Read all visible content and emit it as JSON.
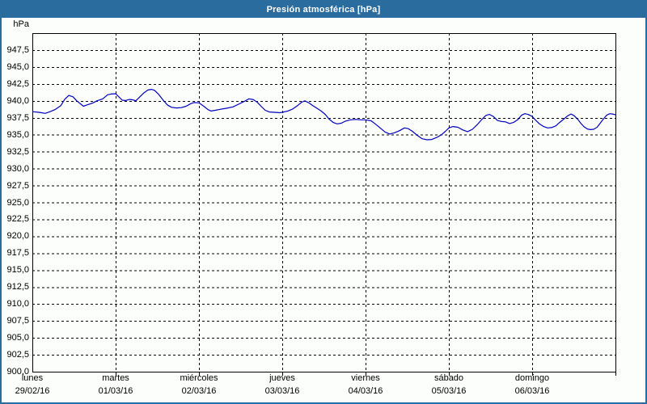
{
  "window": {
    "title": "Presión atmosférica [hPa]"
  },
  "colors": {
    "frame": "#2B6C9F",
    "title_text": "#FFFFFF",
    "background": "#FBFEFA",
    "plot_border": "#000000",
    "gridline": "#000000",
    "series_line": "#0000BE",
    "label_text": "#000000"
  },
  "chart_data": {
    "type": "line",
    "title": "Presión atmosférica [hPa]",
    "ylabel": "hPa",
    "xlabel": "",
    "ylim": [
      900,
      950
    ],
    "ytick_start": 900,
    "ytick_end": 947.5,
    "ytick_step": 2.5,
    "xlim_hours": [
      0,
      168
    ],
    "grid": "dashed",
    "legend_position": "none",
    "days": [
      {
        "name": "lunes",
        "date": "29/02/16"
      },
      {
        "name": "martes",
        "date": "01/03/16"
      },
      {
        "name": "miércoles",
        "date": "02/03/16"
      },
      {
        "name": "jueves",
        "date": "03/03/16"
      },
      {
        "name": "viernes",
        "date": "04/03/16"
      },
      {
        "name": "sábado",
        "date": "05/03/16"
      },
      {
        "name": "domingo",
        "date": "06/03/16"
      }
    ],
    "series": [
      {
        "name": "Presión atmosférica",
        "unit": "hPa",
        "x_unit": "hours from lunes 00:00",
        "points": [
          [
            0,
            938.4
          ],
          [
            1.9,
            938.3
          ],
          [
            3.7,
            938.15
          ],
          [
            5.1,
            938.4
          ],
          [
            6.5,
            938.7
          ],
          [
            8.2,
            939.3
          ],
          [
            9.3,
            940.2
          ],
          [
            10.5,
            940.8
          ],
          [
            11.7,
            940.6
          ],
          [
            12.8,
            940.0
          ],
          [
            14.0,
            939.5
          ],
          [
            14.7,
            939.2
          ],
          [
            15.8,
            939.4
          ],
          [
            17.5,
            939.7
          ],
          [
            18.6,
            940.0
          ],
          [
            20.3,
            940.3
          ],
          [
            21.7,
            940.9
          ],
          [
            22.6,
            941.0
          ],
          [
            24.0,
            941.05
          ],
          [
            24.9,
            940.6
          ],
          [
            25.9,
            940.1
          ],
          [
            26.8,
            940.05
          ],
          [
            28.0,
            940.2
          ],
          [
            28.9,
            940.15
          ],
          [
            29.8,
            940.0
          ],
          [
            30.8,
            940.5
          ],
          [
            32.2,
            941.2
          ],
          [
            33.3,
            941.6
          ],
          [
            34.3,
            941.7
          ],
          [
            35.2,
            941.55
          ],
          [
            36.3,
            941.0
          ],
          [
            37.7,
            940.1
          ],
          [
            38.9,
            939.4
          ],
          [
            40.1,
            939.05
          ],
          [
            41.5,
            938.95
          ],
          [
            42.9,
            939.0
          ],
          [
            44.3,
            939.2
          ],
          [
            45.7,
            939.6
          ],
          [
            46.6,
            939.75
          ],
          [
            48.0,
            939.7
          ],
          [
            49.4,
            939.2
          ],
          [
            50.6,
            938.7
          ],
          [
            51.5,
            938.5
          ],
          [
            52.7,
            938.6
          ],
          [
            54.1,
            938.75
          ],
          [
            55.9,
            938.9
          ],
          [
            57.8,
            939.1
          ],
          [
            59.4,
            939.5
          ],
          [
            61.0,
            939.9
          ],
          [
            62.4,
            940.3
          ],
          [
            63.6,
            940.2
          ],
          [
            64.8,
            939.8
          ],
          [
            65.9,
            939.2
          ],
          [
            67.1,
            938.6
          ],
          [
            68.3,
            938.35
          ],
          [
            69.9,
            938.3
          ],
          [
            71.3,
            938.25
          ],
          [
            72.0,
            938.3
          ],
          [
            73.6,
            938.5
          ],
          [
            75.0,
            938.8
          ],
          [
            76.4,
            939.3
          ],
          [
            77.6,
            939.8
          ],
          [
            78.5,
            940.0
          ],
          [
            79.7,
            939.7
          ],
          [
            80.8,
            939.3
          ],
          [
            82.0,
            938.9
          ],
          [
            83.2,
            938.5
          ],
          [
            84.4,
            938.0
          ],
          [
            85.5,
            937.3
          ],
          [
            86.7,
            936.8
          ],
          [
            87.8,
            936.6
          ],
          [
            89.0,
            936.7
          ],
          [
            90.2,
            937.0
          ],
          [
            91.6,
            937.2
          ],
          [
            93.2,
            937.25
          ],
          [
            94.8,
            937.2
          ],
          [
            96.0,
            937.2
          ],
          [
            97.6,
            937.05
          ],
          [
            98.8,
            936.6
          ],
          [
            100.2,
            936.0
          ],
          [
            101.6,
            935.4
          ],
          [
            103.0,
            935.1
          ],
          [
            104.4,
            935.3
          ],
          [
            105.8,
            935.6
          ],
          [
            107.2,
            936.0
          ],
          [
            108.3,
            935.9
          ],
          [
            109.5,
            935.5
          ],
          [
            110.9,
            934.9
          ],
          [
            112.3,
            934.4
          ],
          [
            113.7,
            934.25
          ],
          [
            115.1,
            934.3
          ],
          [
            116.5,
            934.6
          ],
          [
            117.9,
            935.0
          ],
          [
            119.0,
            935.5
          ],
          [
            120.0,
            936.0
          ],
          [
            121.2,
            936.2
          ],
          [
            122.6,
            936.1
          ],
          [
            124.0,
            935.7
          ],
          [
            125.4,
            935.45
          ],
          [
            126.8,
            935.8
          ],
          [
            128.2,
            936.5
          ],
          [
            129.6,
            937.3
          ],
          [
            130.7,
            937.85
          ],
          [
            131.7,
            938.0
          ],
          [
            132.8,
            937.7
          ],
          [
            134.0,
            937.1
          ],
          [
            135.2,
            936.95
          ],
          [
            136.3,
            936.9
          ],
          [
            137.5,
            936.65
          ],
          [
            138.6,
            936.8
          ],
          [
            139.8,
            937.2
          ],
          [
            141.0,
            937.9
          ],
          [
            141.9,
            938.1
          ],
          [
            142.8,
            938.0
          ],
          [
            144.0,
            937.7
          ],
          [
            144.9,
            937.2
          ],
          [
            146.1,
            936.6
          ],
          [
            147.3,
            936.2
          ],
          [
            148.4,
            936.0
          ],
          [
            149.6,
            936.05
          ],
          [
            150.8,
            936.3
          ],
          [
            151.9,
            936.8
          ],
          [
            153.1,
            937.3
          ],
          [
            154.3,
            937.8
          ],
          [
            155.2,
            938.05
          ],
          [
            156.1,
            937.8
          ],
          [
            157.1,
            937.3
          ],
          [
            158.0,
            936.7
          ],
          [
            158.9,
            936.2
          ],
          [
            159.9,
            935.85
          ],
          [
            160.8,
            935.75
          ],
          [
            161.7,
            935.8
          ],
          [
            162.7,
            936.1
          ],
          [
            163.6,
            936.7
          ],
          [
            164.5,
            937.3
          ],
          [
            165.5,
            937.9
          ],
          [
            166.4,
            938.1
          ],
          [
            167.1,
            938.05
          ],
          [
            168.0,
            937.95
          ]
        ]
      }
    ]
  }
}
